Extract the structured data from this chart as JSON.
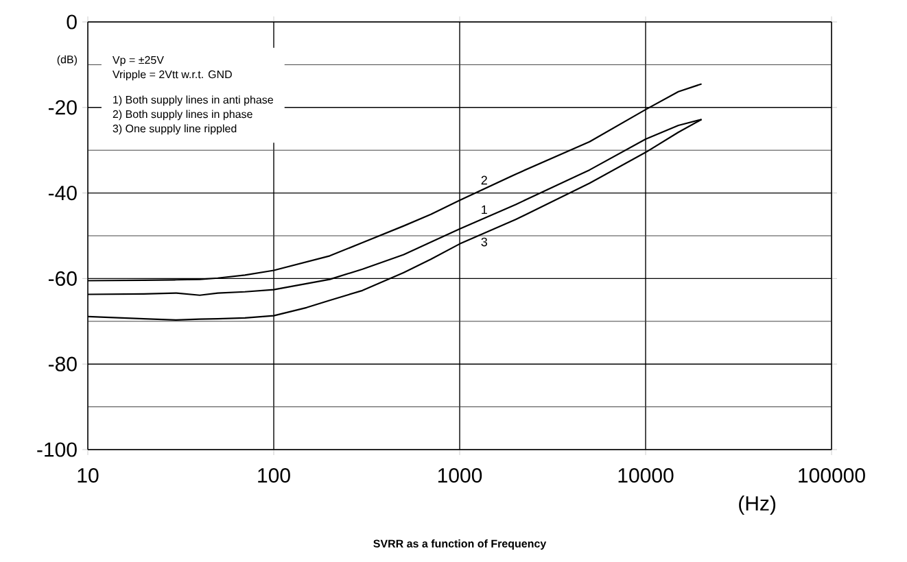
{
  "chart_data": {
    "type": "line",
    "title": "SVRR as a function of Frequency",
    "xlabel": "(Hz)",
    "ylabel": "(dB)",
    "log": "x",
    "xlim": [
      10,
      100000
    ],
    "xticks": [
      10,
      100,
      1000,
      10000,
      100000
    ],
    "ylim": [
      -100,
      0
    ],
    "yticks": [
      -100,
      -80,
      -60,
      -40,
      -20,
      0
    ],
    "grid": true,
    "marker": "none",
    "line_style": "solid",
    "series": [
      {
        "name": "1",
        "color": "#000000",
        "x": [
          10,
          20,
          30,
          40,
          50,
          70,
          100,
          200,
          300,
          500,
          700,
          1000,
          2000,
          5000,
          10000,
          15000,
          20000
        ],
        "values": [
          -63.7,
          -63.6,
          -63.4,
          -63.9,
          -63.4,
          -63.1,
          -62.6,
          -60.2,
          -57.8,
          -54.4,
          -51.5,
          -48.4,
          -42.7,
          -34.6,
          -27.4,
          -24.2,
          -22.8
        ]
      },
      {
        "name": "2",
        "color": "#000000",
        "x": [
          10,
          20,
          30,
          40,
          50,
          70,
          100,
          200,
          300,
          500,
          700,
          1000,
          2000,
          5000,
          10000,
          15000,
          20000
        ],
        "values": [
          -60.5,
          -60.4,
          -60.3,
          -60.2,
          -59.9,
          -59.2,
          -58.1,
          -54.7,
          -51.6,
          -47.7,
          -45,
          -41.7,
          -35.6,
          -28,
          -20.5,
          -16.3,
          -14.5
        ]
      },
      {
        "name": "3",
        "color": "#000000",
        "x": [
          10,
          20,
          30,
          40,
          50,
          70,
          100,
          150,
          200,
          300,
          500,
          700,
          1000,
          2000,
          5000,
          10000,
          15000,
          20000
        ],
        "values": [
          -68.9,
          -69.4,
          -69.7,
          -69.5,
          -69.4,
          -69.2,
          -68.7,
          -66.8,
          -65.1,
          -62.8,
          -58.6,
          -55.5,
          -51.9,
          -46.2,
          -37.7,
          -30.5,
          -25.8,
          -22.8
        ]
      }
    ],
    "annotations": [
      "Vp = ±25V",
      "Vripple = 2Vtt  w.r.t. GND",
      "1) Both supply lines in anti phase",
      "2) Both supply lines in phase",
      "3) One supply line rippled"
    ]
  }
}
